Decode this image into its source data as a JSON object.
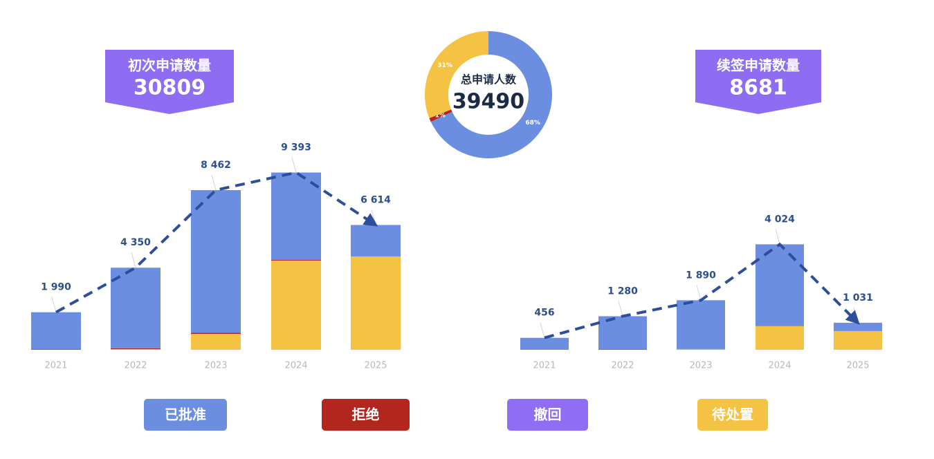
{
  "chart_data": [
    {
      "type": "bar",
      "title": "初次申请数量",
      "total": 30809,
      "categories": [
        "2021",
        "2022",
        "2023",
        "2024",
        "2025"
      ],
      "series": [
        {
          "name": "已批准",
          "color": "#6b8ee0",
          "values": [
            1960,
            4270,
            7562,
            4633,
            1674
          ]
        },
        {
          "name": "拒绝",
          "color": "#b3261e",
          "values": [
            30,
            50,
            60,
            40,
            0
          ]
        },
        {
          "name": "撤回",
          "color": "#8f6ef5",
          "values": [
            0,
            0,
            0,
            0,
            0
          ]
        },
        {
          "name": "待处置",
          "color": "#f4c343",
          "values": [
            0,
            30,
            840,
            4720,
            4940
          ]
        }
      ],
      "totals": [
        1990,
        4350,
        8462,
        9393,
        6614
      ],
      "total_labels": [
        "1 990",
        "4 350",
        "8 462",
        "9 393",
        "6 614"
      ],
      "ylim": [
        0,
        10000
      ]
    },
    {
      "type": "bar",
      "title": "续签申请数量",
      "total": 8681,
      "categories": [
        "2021",
        "2022",
        "2023",
        "2024",
        "2025"
      ],
      "series": [
        {
          "color": "#6b8ee0",
          "values": [
            456,
            1260,
            1860,
            3124,
            316
          ]
        },
        {
          "color": "#b3261e",
          "values": [
            0,
            20,
            10,
            0,
            0
          ]
        },
        {
          "color": "#8f6ef5",
          "values": [
            0,
            0,
            0,
            0,
            0
          ]
        },
        {
          "color": "#f4c343",
          "values": [
            0,
            0,
            20,
            900,
            715
          ]
        }
      ],
      "totals": [
        456,
        1280,
        1890,
        4024,
        1031
      ],
      "total_labels": [
        "456",
        "1 280",
        "1 890",
        "4 024",
        "1 031"
      ],
      "ylim": [
        0,
        7200
      ]
    },
    {
      "type": "pie",
      "title": "总申请人数",
      "total": 39490,
      "values": [
        68,
        1,
        31
      ],
      "value_labels": [
        "68%",
        "1%",
        "31%"
      ],
      "colors": [
        "#6b8ee0",
        "#b3261e",
        "#f4c343"
      ]
    }
  ]
}
